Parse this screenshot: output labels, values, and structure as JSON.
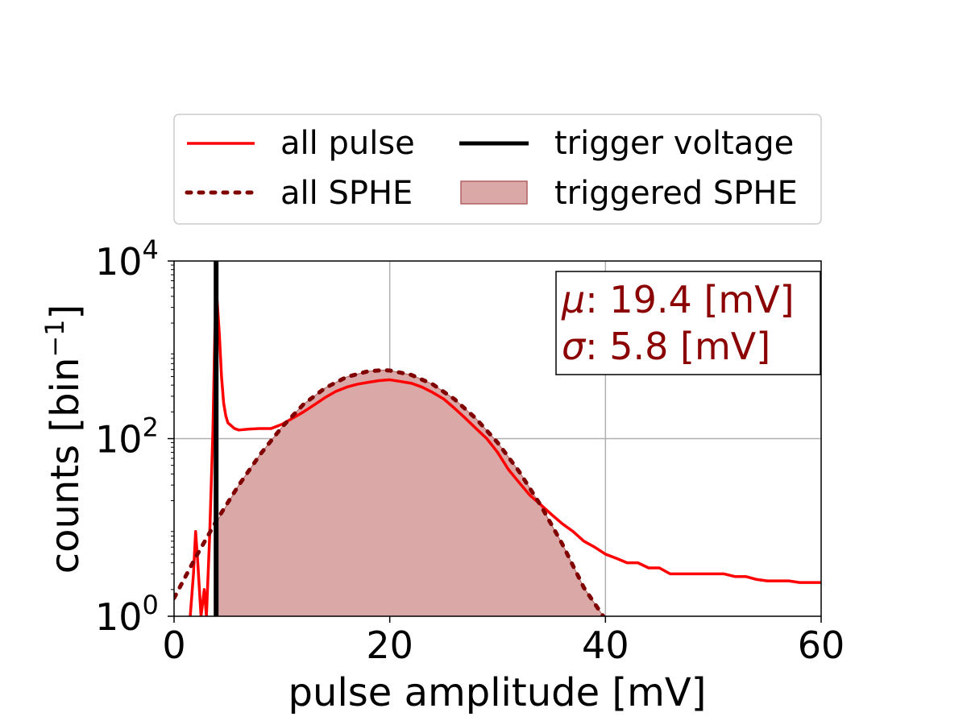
{
  "chart_data": {
    "type": "line",
    "title": "",
    "xlabel": "pulse amplitude [mV]",
    "ylabel_main": "counts [bin",
    "ylabel_exp": "−1",
    "ylabel_close": "]",
    "xlim": [
      0,
      60
    ],
    "ylim": [
      1,
      10000
    ],
    "yscale": "log",
    "grid": true,
    "legend_placement": "above plot, two columns",
    "x_ticks": [
      {
        "value": 0,
        "label": "0"
      },
      {
        "value": 20,
        "label": "20"
      },
      {
        "value": 40,
        "label": "40"
      },
      {
        "value": 60,
        "label": "60"
      }
    ],
    "y_ticks": [
      {
        "value": 1,
        "base": "10",
        "exp": "0"
      },
      {
        "value": 100,
        "base": "10",
        "exp": "2"
      },
      {
        "value": 10000,
        "base": "10",
        "exp": "4"
      }
    ],
    "annotation": {
      "mu_symbol": "μ",
      "mu_text": ": 19.4 [mV]",
      "sigma_symbol": "σ",
      "sigma_text": ": 5.8 [mV]",
      "color": "#8b0000"
    },
    "series": [
      {
        "name": "all pulse",
        "style": "solid",
        "color": "#ff0000",
        "x": [
          1.5,
          1.8,
          2.0,
          2.2,
          2.5,
          2.8,
          3.0,
          3.3,
          3.6,
          3.8,
          4.0,
          4.2,
          4.4,
          4.6,
          4.8,
          5.0,
          5.3,
          5.6,
          6,
          7,
          8,
          9,
          10,
          11,
          12,
          13,
          14,
          15,
          16,
          17,
          18,
          19,
          20,
          21,
          22,
          23,
          24,
          25,
          26,
          27,
          28,
          29,
          30,
          31,
          32,
          33,
          34,
          35,
          36,
          37,
          38,
          39,
          40,
          41,
          42,
          43,
          44,
          45,
          46,
          47,
          48,
          49,
          50,
          51,
          52,
          53,
          54,
          55,
          56,
          57,
          58,
          59,
          60
        ],
        "y": [
          1,
          3,
          9,
          4,
          1,
          2,
          1,
          8,
          120,
          2000,
          3500,
          1500,
          500,
          250,
          180,
          150,
          140,
          130,
          125,
          128,
          130,
          130,
          145,
          170,
          200,
          240,
          290,
          340,
          380,
          410,
          430,
          450,
          460,
          440,
          420,
          380,
          330,
          280,
          220,
          170,
          130,
          100,
          70,
          45,
          32,
          23,
          18,
          14,
          11,
          9,
          7,
          6,
          5,
          4.5,
          4,
          4,
          3.5,
          3.5,
          3,
          3,
          3,
          3,
          3,
          3,
          2.8,
          2.8,
          2.6,
          2.5,
          2.5,
          2.5,
          2.4,
          2.4,
          2.4
        ]
      },
      {
        "name": "all SPHE",
        "style": "dotted",
        "color": "#800000",
        "x": [
          0,
          2,
          4,
          6,
          8,
          10,
          12,
          14,
          16,
          18,
          19.4,
          20,
          22,
          24,
          26,
          28,
          30,
          32,
          34,
          36,
          38,
          39.8
        ],
        "y": [
          1.6,
          4.6,
          12.3,
          29.9,
          66.7,
          134.6,
          243.4,
          371.1,
          494.5,
          573.8,
          590,
          584.6,
          522,
          408,
          278.1,
          167.9,
          90.2,
          42.6,
          17.7,
          6.5,
          2.1,
          1
        ]
      },
      {
        "name": "trigger voltage",
        "style": "vertical-line",
        "color": "#000000",
        "x_value": 3.9
      },
      {
        "name": "triggered SPHE",
        "style": "filled-area",
        "color": "#dba8a8",
        "edge_color": "#b06060",
        "x": [
          3.9,
          6,
          8,
          10,
          12,
          14,
          16,
          18,
          19.4,
          20,
          22,
          24,
          26,
          28,
          30,
          32,
          34,
          36,
          38,
          39.8
        ],
        "y": [
          11.2,
          29.9,
          66.7,
          134.6,
          243.4,
          371.1,
          494.5,
          573.8,
          590,
          584.6,
          522,
          408,
          278.1,
          167.9,
          90.2,
          42.6,
          17.7,
          6.5,
          2.1,
          1
        ]
      }
    ]
  }
}
